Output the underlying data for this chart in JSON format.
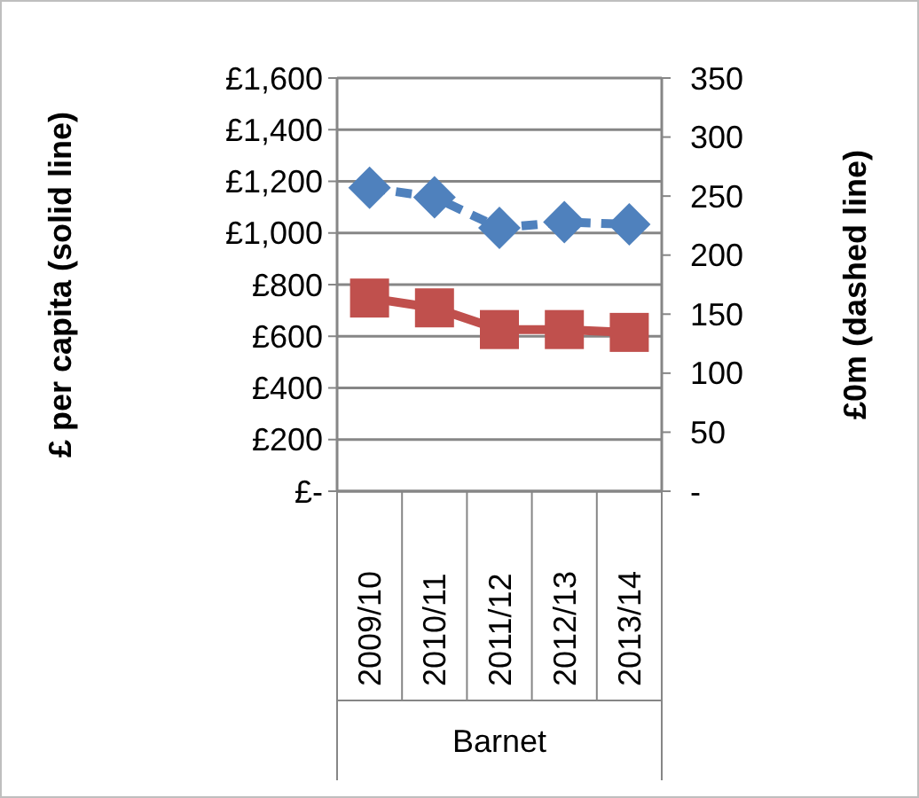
{
  "chart_data": {
    "type": "line",
    "xlabel": "Barnet",
    "ylabel": "£ per capita (solid line)",
    "y2label": "£0m (dashed line)",
    "categories": [
      "2009/10",
      "2010/11",
      "2011/12",
      "2012/13",
      "2013/14"
    ],
    "series": [
      {
        "color": "#c0504d",
        "values": [
          748,
          710,
          626,
          626,
          615
        ],
        "marker": "square",
        "line_style": "solid"
      },
      {
        "color": "#4f81bd",
        "values": [
          257,
          249,
          223,
          228,
          226
        ],
        "marker": "diamond",
        "line_style": "dashed",
        "axis": "y2"
      }
    ],
    "ylim": [
      0,
      1600
    ],
    "yticks": [
      {
        "value": 0,
        "label": "£-"
      },
      {
        "value": 200,
        "label": "£200"
      },
      {
        "value": 400,
        "label": "£400"
      },
      {
        "value": 600,
        "label": "£600"
      },
      {
        "value": 800,
        "label": "£800"
      },
      {
        "value": 1000,
        "label": "£1,000"
      },
      {
        "value": 1200,
        "label": "£1,200"
      },
      {
        "value": 1400,
        "label": "£1,400"
      },
      {
        "value": 1600,
        "label": "£1,600"
      }
    ],
    "y2lim": [
      0,
      350
    ],
    "y2ticks": [
      {
        "value": 0,
        "label": "-"
      },
      50,
      100,
      150,
      200,
      250,
      300,
      350
    ],
    "grid": "y"
  }
}
